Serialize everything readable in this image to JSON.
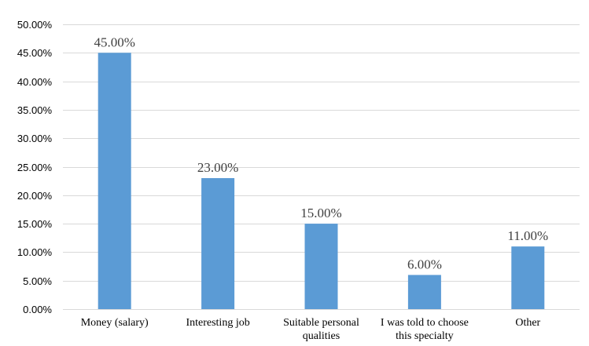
{
  "chart_data": {
    "type": "bar",
    "categories": [
      [
        "Money (salary)"
      ],
      [
        "Interesting job"
      ],
      [
        "Suitable personal",
        "qualities"
      ],
      [
        "I was told to choose",
        "this specialty"
      ],
      [
        "Other"
      ]
    ],
    "values": [
      45,
      23,
      15,
      6,
      11
    ],
    "data_labels": [
      "45.00%",
      "23.00%",
      "15.00%",
      "6.00%",
      "11.00%"
    ],
    "ylim": [
      0,
      50
    ],
    "yticks": [
      0,
      5,
      10,
      15,
      20,
      25,
      30,
      35,
      40,
      45,
      50
    ],
    "ytick_labels": [
      "0.00%",
      "5.00%",
      "10.00%",
      "15.00%",
      "20.00%",
      "25.00%",
      "30.00%",
      "35.00%",
      "40.00%",
      "45.00%",
      "50.00%"
    ],
    "title": "",
    "xlabel": "",
    "ylabel": "",
    "grid": true,
    "legend": "none",
    "bar_color": "#5b9bd5"
  }
}
